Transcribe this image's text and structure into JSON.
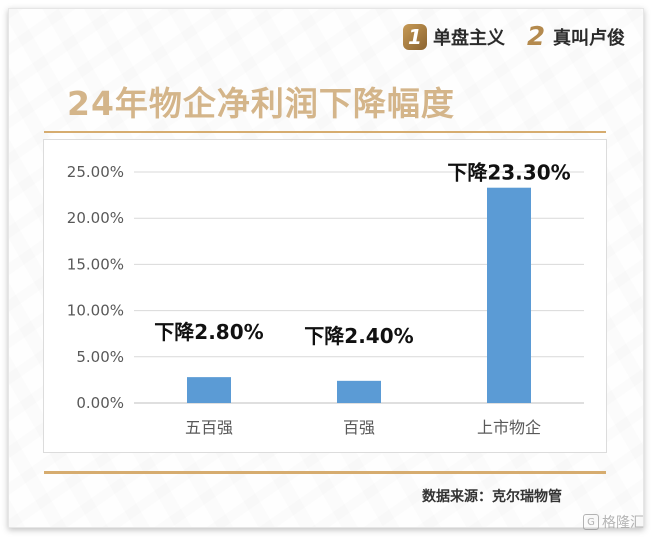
{
  "brand": {
    "item1_num": "1",
    "item1_text": "单盘主义",
    "item2_num": "2",
    "item2_text": "真叫卢俊"
  },
  "title": "24年物企净利润下降幅度",
  "source": "数据来源：克尔瑞物管",
  "watermark": "格隆汇",
  "chart_data": {
    "type": "bar",
    "title": "",
    "xlabel": "",
    "ylabel": "",
    "categories": [
      "五百强",
      "百强",
      "上市物企"
    ],
    "values": [
      2.8,
      2.4,
      23.3
    ],
    "data_labels": [
      "下降2.80%",
      "下降2.40%",
      "下降23.30%"
    ],
    "ylim": [
      0,
      25
    ],
    "yticks": [
      "0.00%",
      "5.00%",
      "10.00%",
      "15.00%",
      "20.00%",
      "25.00%"
    ],
    "grid": true,
    "bar_color": "#5b9bd5"
  }
}
